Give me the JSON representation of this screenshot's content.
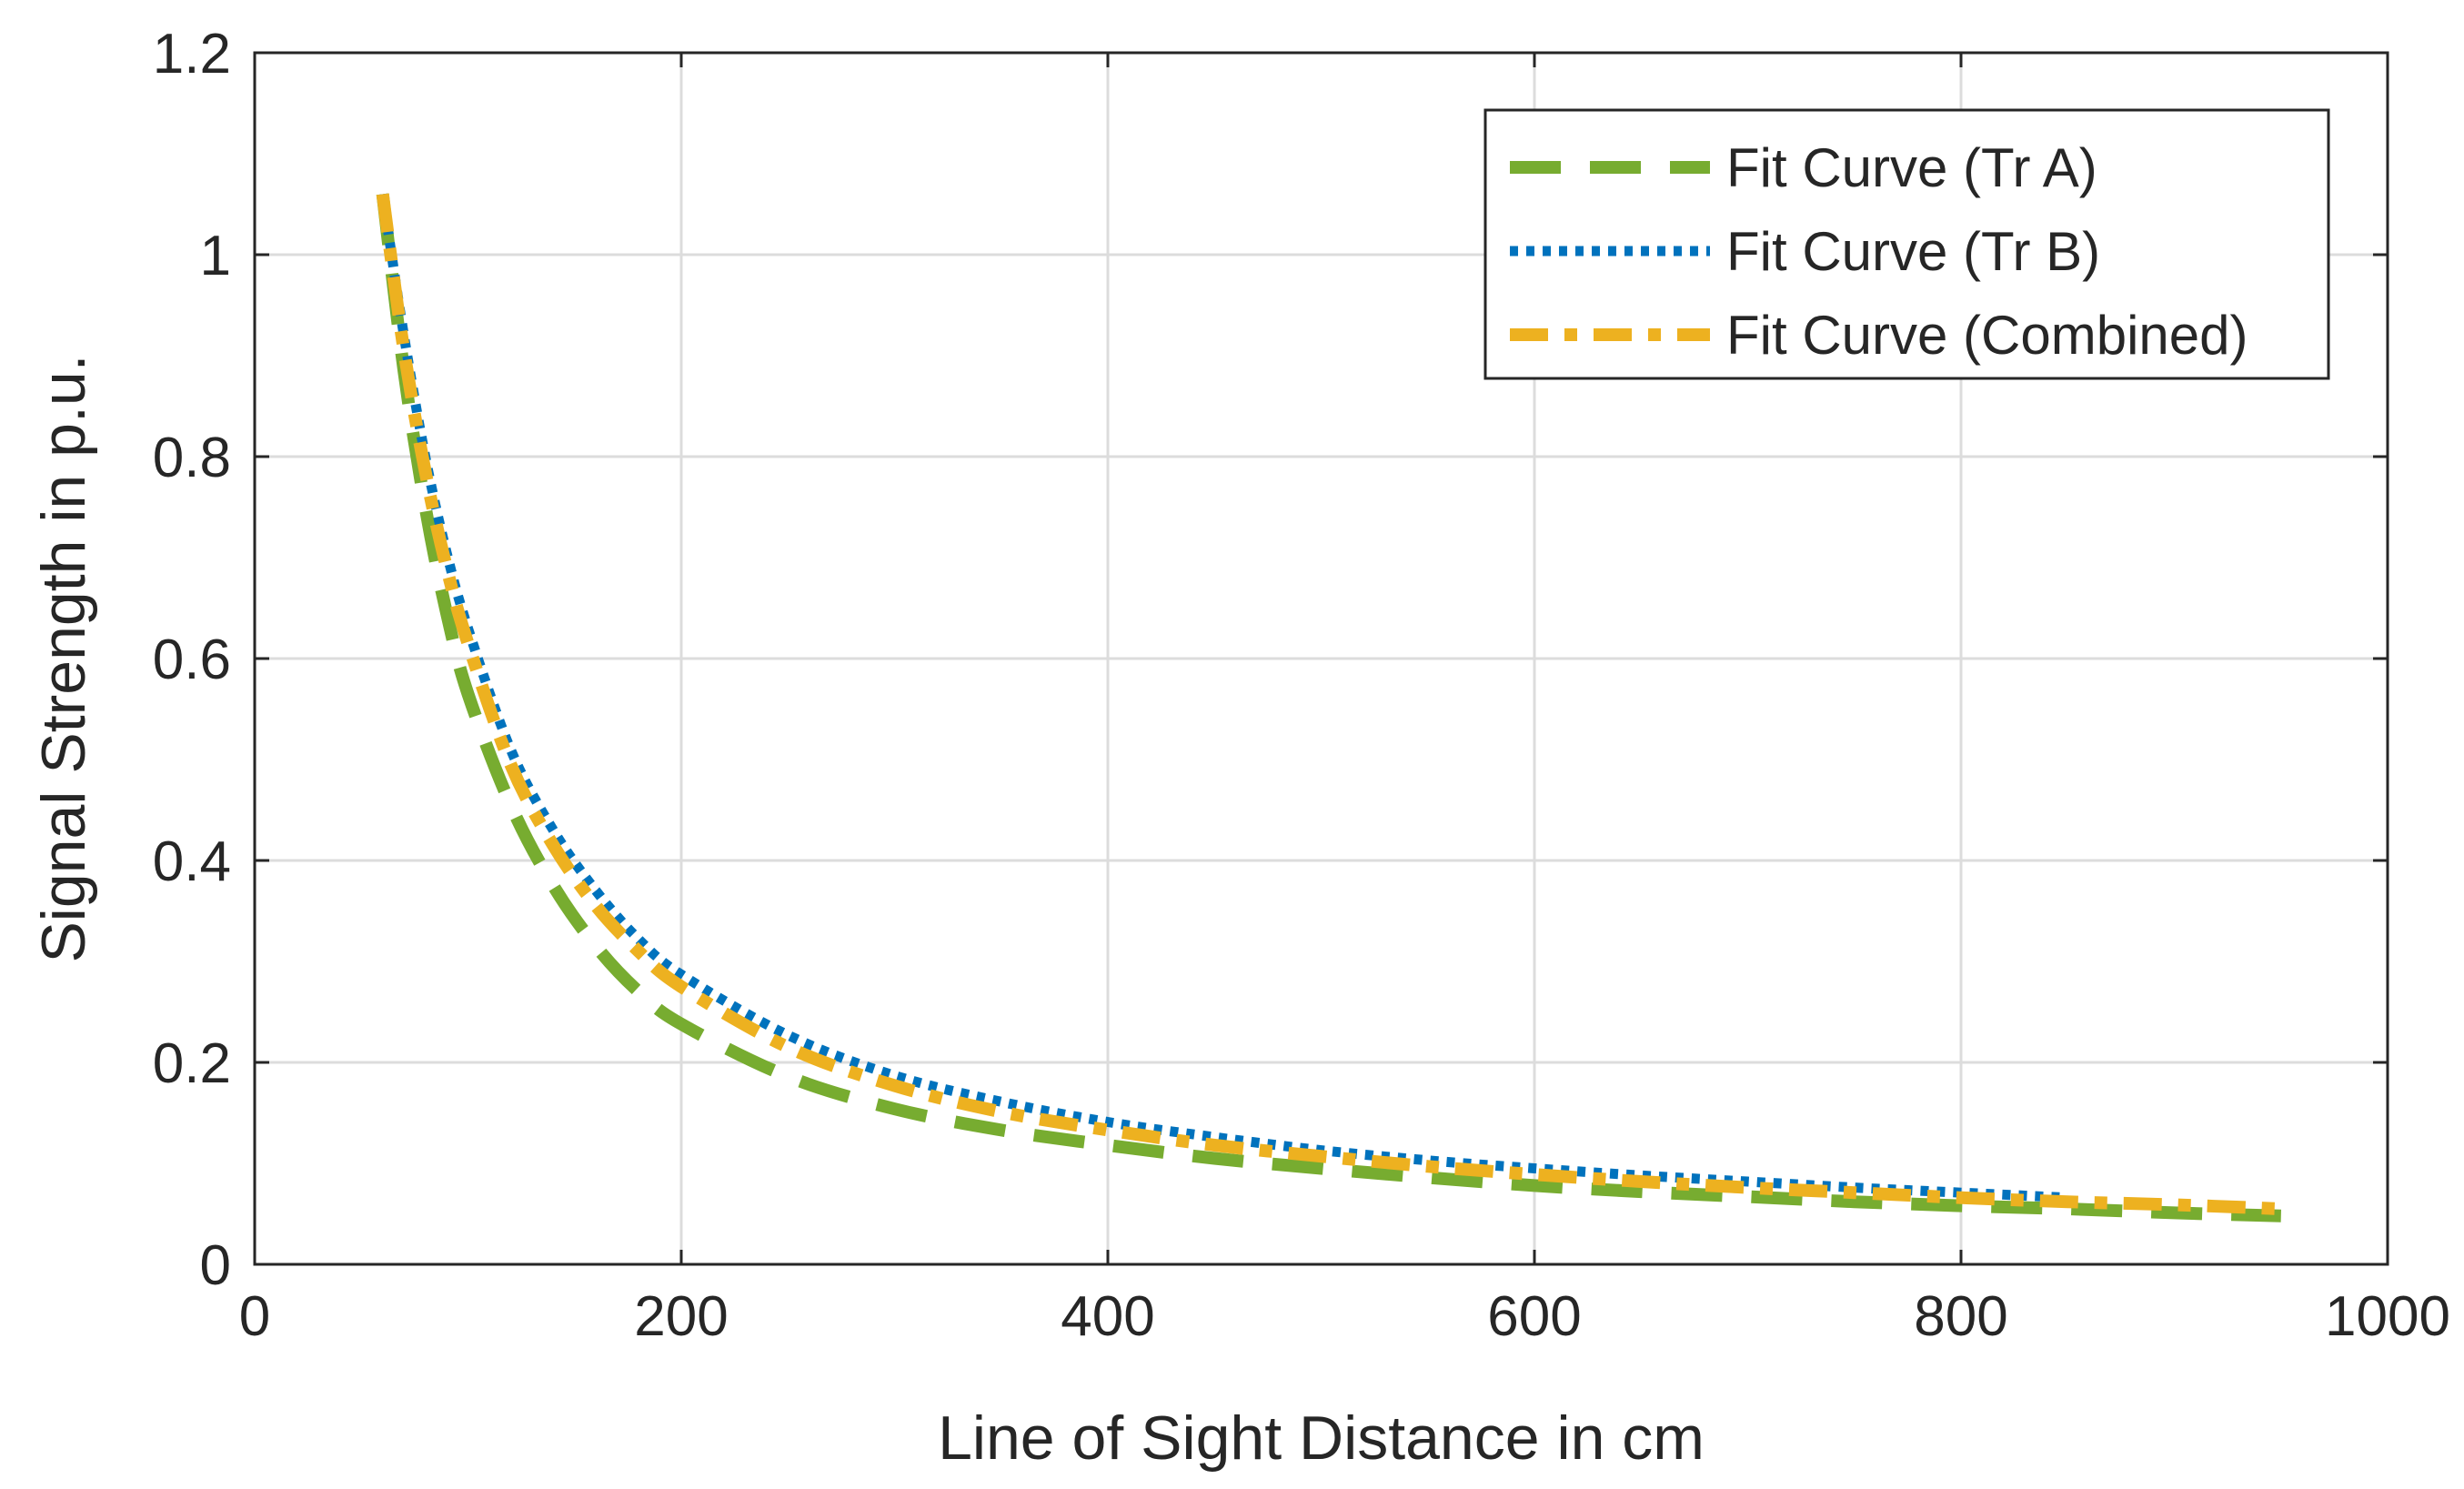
{
  "chart_data": {
    "type": "line",
    "title": "",
    "xlabel": "Line of Sight Distance in cm",
    "ylabel": "Signal Strength in p.u.",
    "xlim": [
      0,
      1000
    ],
    "ylim": [
      0,
      1.2
    ],
    "xticks": [
      0,
      200,
      400,
      600,
      800,
      1000
    ],
    "yticks": [
      0,
      0.2,
      0.4,
      0.6,
      0.8,
      1,
      1.2
    ],
    "xtick_labels": [
      "0",
      "200",
      "400",
      "600",
      "800",
      "1000"
    ],
    "ytick_labels": [
      "0",
      "0.2",
      "0.4",
      "0.6",
      "0.8",
      "1",
      "1.2"
    ],
    "grid": true,
    "legend_position": "top-right",
    "series": [
      {
        "name": "Fit Curve (Tr A)",
        "style": "dashed",
        "color": "#77AC30",
        "x": [
          60,
          70,
          80,
          90,
          100,
          120,
          140,
          160,
          180,
          200,
          250,
          300,
          350,
          400,
          450,
          500,
          550,
          600,
          650,
          700,
          750,
          800,
          850,
          900,
          950
        ],
        "y": [
          1.06,
          0.885,
          0.75,
          0.645,
          0.565,
          0.455,
          0.375,
          0.315,
          0.27,
          0.238,
          0.186,
          0.154,
          0.133,
          0.118,
          0.105,
          0.095,
          0.086,
          0.078,
          0.072,
          0.067,
          0.062,
          0.058,
          0.055,
          0.051,
          0.048
        ]
      },
      {
        "name": "Fit Curve (Tr B)",
        "style": "dotted",
        "color": "#0072BD",
        "x": [
          60,
          70,
          80,
          90,
          100,
          120,
          140,
          160,
          180,
          200,
          250,
          300,
          350,
          400,
          450,
          500,
          550,
          600,
          650,
          700,
          750,
          800,
          850
        ],
        "y": [
          1.06,
          0.92,
          0.8,
          0.705,
          0.63,
          0.51,
          0.43,
          0.37,
          0.322,
          0.287,
          0.227,
          0.187,
          0.161,
          0.141,
          0.126,
          0.113,
          0.103,
          0.095,
          0.088,
          0.082,
          0.076,
          0.071,
          0.066
        ]
      },
      {
        "name": "Fit Curve (Combined)",
        "style": "dashdot",
        "color": "#EDB120",
        "x": [
          60,
          70,
          80,
          90,
          100,
          120,
          140,
          160,
          180,
          200,
          250,
          300,
          350,
          400,
          450,
          500,
          550,
          600,
          650,
          700,
          750,
          800,
          850,
          900,
          950
        ],
        "y": [
          1.06,
          0.905,
          0.785,
          0.69,
          0.615,
          0.495,
          0.415,
          0.355,
          0.31,
          0.275,
          0.215,
          0.177,
          0.151,
          0.133,
          0.118,
          0.107,
          0.097,
          0.089,
          0.082,
          0.076,
          0.071,
          0.066,
          0.062,
          0.059,
          0.055
        ]
      }
    ]
  }
}
